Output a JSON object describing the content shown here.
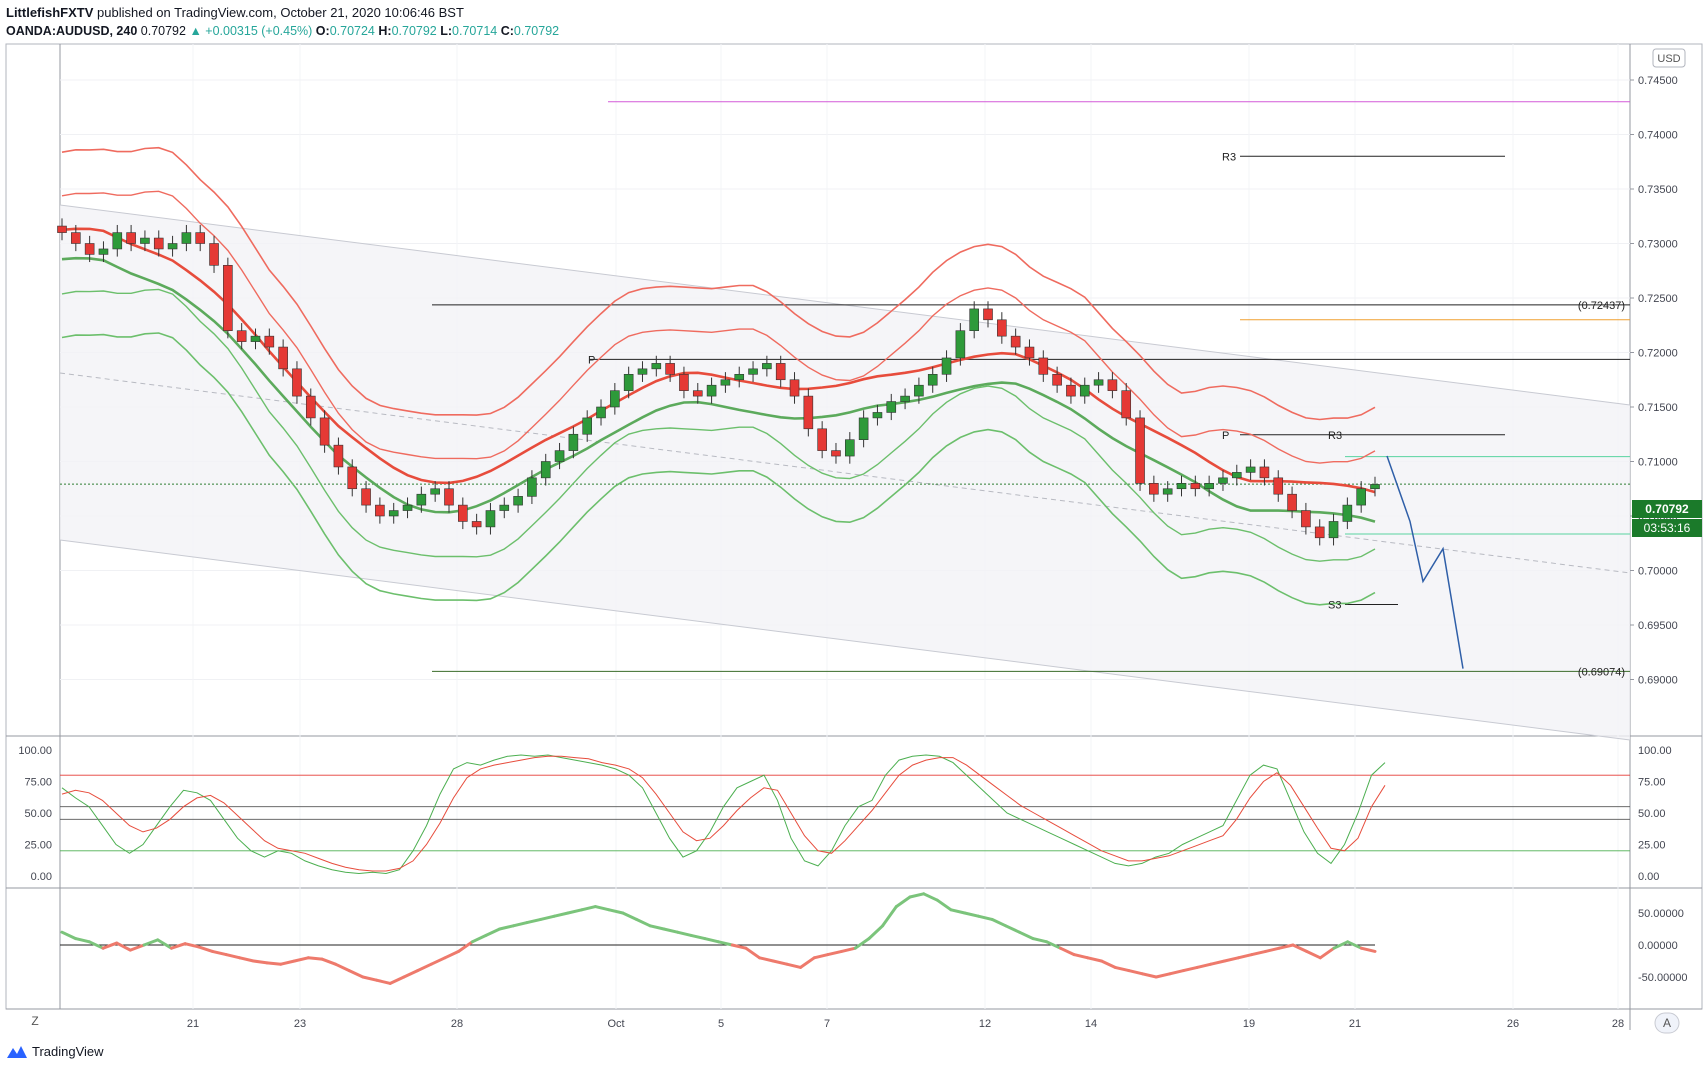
{
  "header": {
    "publisher": "LittlefishFXTV",
    "published_text": "published on TradingView.com, October 21, 2020 10:06:46 BST",
    "symbol": "OANDA:AUDUSD, 240",
    "last": "0.70792",
    "change": "▲ +0.00315 (+0.45%)",
    "o_label": "O:",
    "o_val": "0.70724",
    "h_label": "H:",
    "h_val": "0.70792",
    "l_label": "L:",
    "l_val": "0.70714",
    "c_label": "C:",
    "c_val": "0.70792"
  },
  "footer": {
    "brand": "TradingView"
  },
  "axis": {
    "currency_badge": "USD",
    "z_button": "Z",
    "a_button": "A",
    "price_ticks": [
      "0.74500",
      "0.74000",
      "0.73500",
      "0.73000",
      "0.72500",
      "0.72000",
      "0.71500",
      "0.71000",
      "0.70500",
      "0.70000",
      "0.69500",
      "0.69000"
    ],
    "stoch_ticks": [
      "100.00",
      "75.00",
      "50.00",
      "25.00",
      "0.00"
    ],
    "osc_ticks": [
      "50.00000",
      "0.00000",
      "-50.00000"
    ],
    "time_ticks": [
      "21",
      "23",
      "28",
      "Oct",
      "5",
      "7",
      "12",
      "14",
      "19",
      "21",
      "26",
      "28"
    ],
    "price_label": "0.70792",
    "countdown_label": "03:53:16"
  },
  "annotations": {
    "fib_high": "(0.72437)",
    "fib_low": "(0.69074)",
    "r3_upper": "R3",
    "p_left": "P",
    "p_right": "P",
    "r3_lower": "R3",
    "s3": "S3"
  },
  "colors": {
    "bull": "#2e9a3a",
    "bear": "#e53935",
    "band_red": "#ef6b5f",
    "band_green": "#6cbf6c",
    "stoch_red": "#e74c3c",
    "stoch_green": "#4caf50",
    "magenta": "#d35ad8",
    "orange": "#f0a030",
    "teal": "#59d3a0",
    "projection": "#2f5fa8"
  },
  "chart_data": {
    "type": "candlestick",
    "symbol": "OANDA:AUDUSD",
    "interval": "240",
    "ylim": [
      0.6875,
      0.7475
    ],
    "x_dates": [
      "21",
      "23",
      "28",
      "Oct",
      "5",
      "7",
      "12",
      "14",
      "19",
      "21",
      "26",
      "28"
    ],
    "close_path": [
      0.731,
      0.73,
      0.729,
      0.7295,
      0.731,
      0.73,
      0.7305,
      0.7295,
      0.73,
      0.731,
      0.73,
      0.728,
      0.722,
      0.721,
      0.7215,
      0.7205,
      0.7185,
      0.716,
      0.714,
      0.7115,
      0.7095,
      0.7075,
      0.706,
      0.705,
      0.7055,
      0.706,
      0.707,
      0.7075,
      0.706,
      0.7045,
      0.704,
      0.7055,
      0.706,
      0.7068,
      0.7085,
      0.71,
      0.711,
      0.7125,
      0.714,
      0.715,
      0.7165,
      0.718,
      0.7185,
      0.719,
      0.718,
      0.7165,
      0.716,
      0.717,
      0.7175,
      0.718,
      0.7185,
      0.719,
      0.7175,
      0.716,
      0.713,
      0.711,
      0.7105,
      0.712,
      0.714,
      0.7145,
      0.7155,
      0.716,
      0.717,
      0.718,
      0.7195,
      0.722,
      0.724,
      0.723,
      0.7215,
      0.7205,
      0.7195,
      0.718,
      0.717,
      0.716,
      0.717,
      0.7175,
      0.7165,
      0.714,
      0.708,
      0.707,
      0.7075,
      0.708,
      0.7075,
      0.708,
      0.7085,
      0.709,
      0.7095,
      0.7085,
      0.707,
      0.7055,
      0.704,
      0.703,
      0.7045,
      0.706,
      0.7075,
      0.7079
    ],
    "last_price": 0.70792,
    "levels": {
      "magenta": 0.743,
      "r3_upper": 0.738,
      "fib_high": 0.72437,
      "orange_upper": 0.723,
      "p_upper": 0.71937,
      "p_lower": 0.71245,
      "r3_lower": 0.71245,
      "teal_upper": 0.71045,
      "teal_lower": 0.70335,
      "s3": 0.69688,
      "fib_low": 0.69074
    },
    "projection": [
      [
        0.7105,
        "21"
      ],
      [
        0.7045,
        ""
      ],
      [
        0.699,
        ""
      ],
      [
        0.702,
        ""
      ],
      [
        0.691,
        "26"
      ]
    ],
    "stochastic": {
      "ylim": [
        0,
        100
      ],
      "levels": [
        80,
        50,
        20
      ],
      "series": [
        {
          "values": [
            70,
            62,
            55,
            40,
            25,
            18,
            25,
            40,
            55,
            68,
            66,
            60,
            45,
            30,
            20,
            15,
            20,
            18,
            12,
            8,
            5,
            3,
            2,
            3,
            2,
            5,
            20,
            40,
            65,
            85,
            90,
            88,
            92,
            95,
            96,
            95,
            96,
            94,
            92,
            90,
            88,
            85,
            80,
            70,
            50,
            30,
            15,
            20,
            35,
            55,
            70,
            75,
            80,
            60,
            30,
            12,
            8,
            20,
            40,
            55,
            60,
            80,
            92,
            95,
            96,
            95,
            90,
            80,
            70,
            60,
            50,
            45,
            40,
            35,
            30,
            25,
            20,
            15,
            10,
            8,
            10,
            15,
            18,
            25,
            30,
            35,
            40,
            60,
            80,
            88,
            85,
            60,
            35,
            18,
            10,
            25,
            50,
            80,
            90
          ]
        },
        {
          "values": [
            65,
            68,
            66,
            60,
            50,
            40,
            35,
            38,
            45,
            55,
            62,
            64,
            58,
            48,
            38,
            28,
            22,
            20,
            18,
            14,
            10,
            7,
            5,
            4,
            4,
            6,
            12,
            25,
            42,
            62,
            78,
            85,
            88,
            90,
            92,
            94,
            95,
            95,
            94,
            93,
            90,
            88,
            85,
            78,
            65,
            50,
            35,
            28,
            30,
            40,
            52,
            62,
            70,
            68,
            50,
            32,
            20,
            18,
            28,
            40,
            52,
            66,
            80,
            88,
            92,
            94,
            94,
            88,
            80,
            72,
            64,
            56,
            50,
            44,
            38,
            32,
            26,
            20,
            16,
            12,
            12,
            14,
            16,
            20,
            24,
            28,
            32,
            45,
            62,
            75,
            82,
            72,
            55,
            38,
            22,
            20,
            30,
            55,
            72
          ]
        }
      ]
    },
    "oscillator": {
      "ylim": [
        -75,
        75
      ],
      "values": [
        20,
        10,
        5,
        -5,
        3,
        -8,
        0,
        8,
        -5,
        2,
        -3,
        -10,
        -15,
        -20,
        -25,
        -28,
        -30,
        -25,
        -20,
        -22,
        -30,
        -40,
        -50,
        -55,
        -60,
        -50,
        -40,
        -30,
        -20,
        -10,
        5,
        15,
        25,
        30,
        35,
        40,
        45,
        50,
        55,
        60,
        55,
        50,
        40,
        30,
        25,
        20,
        15,
        10,
        5,
        0,
        -5,
        -20,
        -25,
        -30,
        -35,
        -20,
        -15,
        -10,
        -5,
        10,
        30,
        60,
        75,
        80,
        70,
        55,
        50,
        45,
        40,
        30,
        20,
        10,
        5,
        -5,
        -15,
        -20,
        -25,
        -35,
        -40,
        -45,
        -50,
        -45,
        -40,
        -35,
        -30,
        -25,
        -20,
        -15,
        -10,
        -5,
        0,
        -10,
        -20,
        -5,
        5,
        -5,
        -10
      ]
    }
  }
}
